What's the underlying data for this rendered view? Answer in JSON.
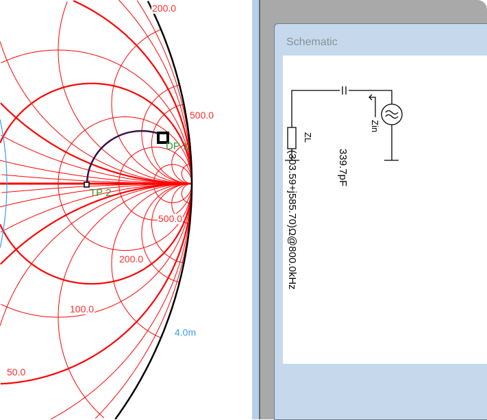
{
  "chart": {
    "resistance_labels": [
      "200.0",
      "500.0",
      "500.0",
      "200.0",
      "100.0",
      "50.0"
    ],
    "admittance_label": "4.0m",
    "markers": [
      {
        "label": "DP 1"
      },
      {
        "label": "TP 2"
      }
    ],
    "colors": {
      "grid": "#ff0000",
      "admittance": "#3b9cf0",
      "boundary": "#000000",
      "trace": "#3a1048",
      "marker_text": "#2e9a2e"
    }
  },
  "window": {
    "title": "Schematic",
    "component_label": "339.7pF",
    "impedance_text": "(303.59+j585.70)Ω@800.0kHz",
    "load_label": "ZL",
    "input_label": "Zin"
  }
}
